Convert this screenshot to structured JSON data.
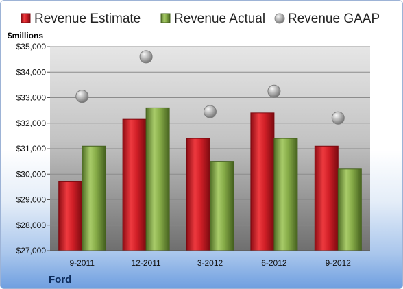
{
  "chart_data": {
    "type": "bar",
    "ylabel": "$millions",
    "ylim": [
      27000,
      35000
    ],
    "yticks": [
      "$27,000",
      "$28,000",
      "$29,000",
      "$30,000",
      "$31,000",
      "$32,000",
      "$33,000",
      "$34,000",
      "$35,000"
    ],
    "categories": [
      "9-2011",
      "12-2011",
      "3-2012",
      "6-2012",
      "9-2012"
    ],
    "series": [
      {
        "name": "Revenue Estimate",
        "kind": "bar",
        "color": "#d7202a",
        "values": [
          29700,
          32150,
          31400,
          32400,
          31100
        ]
      },
      {
        "name": "Revenue Actual",
        "kind": "bar",
        "color": "#8bb14c",
        "values": [
          31100,
          32600,
          30500,
          31400,
          30200
        ]
      },
      {
        "name": "Revenue GAAP",
        "kind": "marker",
        "color": "#a8a8a8",
        "values": [
          33050,
          34600,
          32450,
          33250,
          32200
        ]
      }
    ],
    "grid": true,
    "legend": "top"
  },
  "footer": {
    "company": "Ford"
  }
}
